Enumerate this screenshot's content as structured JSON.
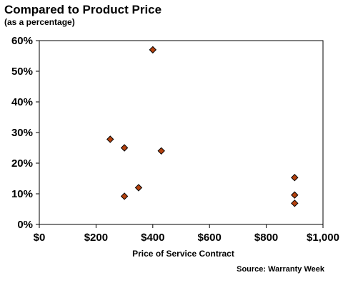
{
  "chart_data": {
    "type": "scatter",
    "title": "Compared to Product Price",
    "subtitle": "(as a percentage)",
    "xlabel": "Price of Service Contract",
    "ylabel": "",
    "xlim": [
      0,
      1000
    ],
    "ylim": [
      0,
      60
    ],
    "xticks": [
      0,
      200,
      400,
      600,
      800,
      1000
    ],
    "xtick_labels": [
      "$0",
      "$200",
      "$400",
      "$600",
      "$800",
      "$1,000"
    ],
    "yticks": [
      0,
      10,
      20,
      30,
      40,
      50,
      60
    ],
    "ytick_labels": [
      "0%",
      "10%",
      "20%",
      "30%",
      "40%",
      "50%",
      "60%"
    ],
    "grid": false,
    "legend": "none",
    "source": "Source: Warranty Week",
    "marker_color": "#b5420e",
    "points": [
      {
        "x": 400,
        "y": 57
      },
      {
        "x": 250,
        "y": 27.8
      },
      {
        "x": 300,
        "y": 25
      },
      {
        "x": 430,
        "y": 24
      },
      {
        "x": 350,
        "y": 12
      },
      {
        "x": 300,
        "y": 9.2
      },
      {
        "x": 900,
        "y": 15.3
      },
      {
        "x": 900,
        "y": 9.6
      },
      {
        "x": 900,
        "y": 6.9
      }
    ]
  }
}
